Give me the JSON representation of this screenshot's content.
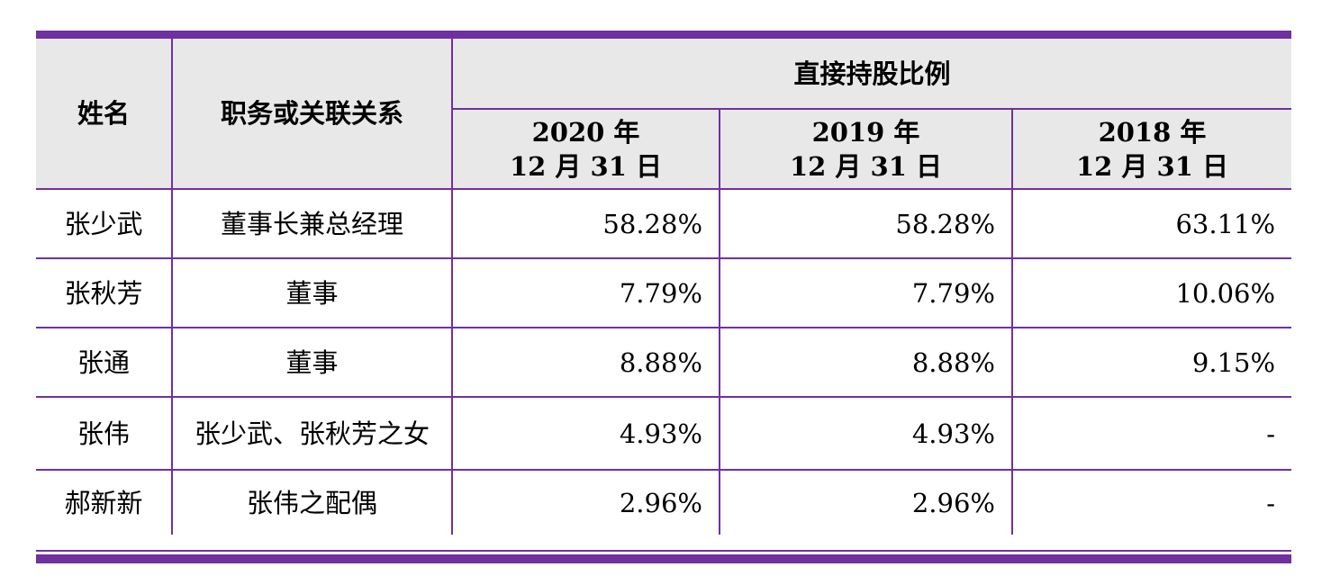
{
  "table": {
    "headers": {
      "name": "姓名",
      "role": "职务或关联关系",
      "group": "直接持股比例",
      "years": [
        {
          "year": "2020 年",
          "date": "12 月 31 日"
        },
        {
          "year": "2019 年",
          "date": "12 月 31 日"
        },
        {
          "year": "2018 年",
          "date": "12 月 31 日"
        }
      ]
    },
    "rows": [
      {
        "name": "张少武",
        "role": "董事长兼总经理",
        "values": [
          "58.28%",
          "58.28%",
          "63.11%"
        ]
      },
      {
        "name": "张秋芳",
        "role": "董事",
        "values": [
          "7.79%",
          "7.79%",
          "10.06%"
        ]
      },
      {
        "name": "张通",
        "role": "董事",
        "values": [
          "8.88%",
          "8.88%",
          "9.15%"
        ]
      },
      {
        "name": "张伟",
        "role": "张少武、张秋芳之女",
        "values": [
          "4.93%",
          "4.93%",
          "-"
        ]
      },
      {
        "name": "郝新新",
        "role": "张伟之配偶",
        "values": [
          "2.96%",
          "2.96%",
          "-"
        ]
      }
    ],
    "border_color": "#7030a0",
    "header_background": "#e8e8e8"
  }
}
